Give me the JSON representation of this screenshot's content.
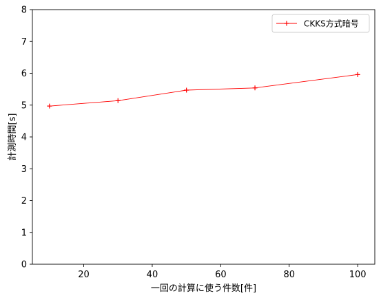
{
  "chart_data": {
    "type": "line",
    "xlabel": "一回の計算に使う件数[件]",
    "ylabel": "計測時間[s]",
    "xlim": [
      5,
      105
    ],
    "ylim": [
      0,
      8
    ],
    "xticks": [
      20,
      40,
      60,
      80,
      100
    ],
    "yticks": [
      0,
      1,
      2,
      3,
      4,
      5,
      6,
      7,
      8
    ],
    "grid": false,
    "legend_position": "top-right",
    "series": [
      {
        "name": "CKKS方式暗号",
        "color": "#ff0000",
        "marker": "plus",
        "x": [
          10,
          30,
          50,
          70,
          100
        ],
        "y": [
          4.97,
          5.14,
          5.47,
          5.54,
          5.96
        ]
      }
    ]
  }
}
